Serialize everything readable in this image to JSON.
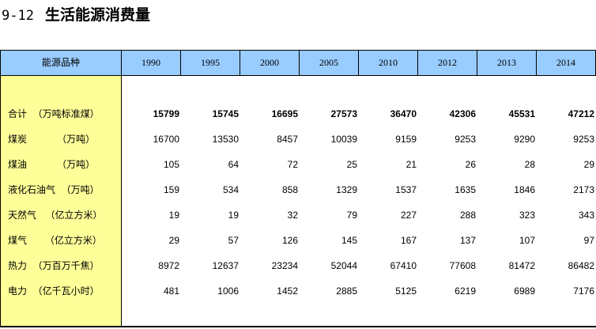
{
  "title": {
    "number": "9-12",
    "text": "生活能源消费量"
  },
  "table": {
    "header_label": "能源品种",
    "years": [
      "1990",
      "1995",
      "2000",
      "2005",
      "2010",
      "2012",
      "2013",
      "2014"
    ],
    "rows": [
      {
        "label": "合计  （万吨标准煤）",
        "bold": true,
        "values": [
          "15799",
          "15745",
          "16695",
          "27573",
          "36470",
          "42306",
          "45531",
          "47212"
        ]
      },
      {
        "label": "煤炭          （万吨）",
        "bold": false,
        "values": [
          "16700",
          "13530",
          "8457",
          "10039",
          "9159",
          "9253",
          "9290",
          "9253"
        ]
      },
      {
        "label": "煤油          （万吨）",
        "bold": false,
        "values": [
          "105",
          "64",
          "72",
          "25",
          "21",
          "26",
          "28",
          "29"
        ]
      },
      {
        "label": "液化石油气  （万吨）",
        "bold": false,
        "values": [
          "159",
          "534",
          "858",
          "1329",
          "1537",
          "1635",
          "1846",
          "2173"
        ]
      },
      {
        "label": "天然气   （亿立方米）",
        "bold": false,
        "values": [
          "19",
          "19",
          "32",
          "79",
          "227",
          "288",
          "323",
          "343"
        ]
      },
      {
        "label": "煤气      （亿立方米）",
        "bold": false,
        "values": [
          "29",
          "57",
          "126",
          "145",
          "167",
          "137",
          "107",
          "97"
        ]
      },
      {
        "label": "热力  （万百万千焦）",
        "bold": false,
        "values": [
          "8972",
          "12637",
          "23234",
          "52044",
          "67410",
          "77608",
          "81472",
          "86482"
        ]
      },
      {
        "label": "电力  （亿千瓦小时）",
        "bold": false,
        "values": [
          "481",
          "1006",
          "1452",
          "2885",
          "5125",
          "6219",
          "6989",
          "7176"
        ]
      }
    ]
  },
  "colors": {
    "header_bg": "#99ccff",
    "label_col_bg": "#ffff99"
  }
}
